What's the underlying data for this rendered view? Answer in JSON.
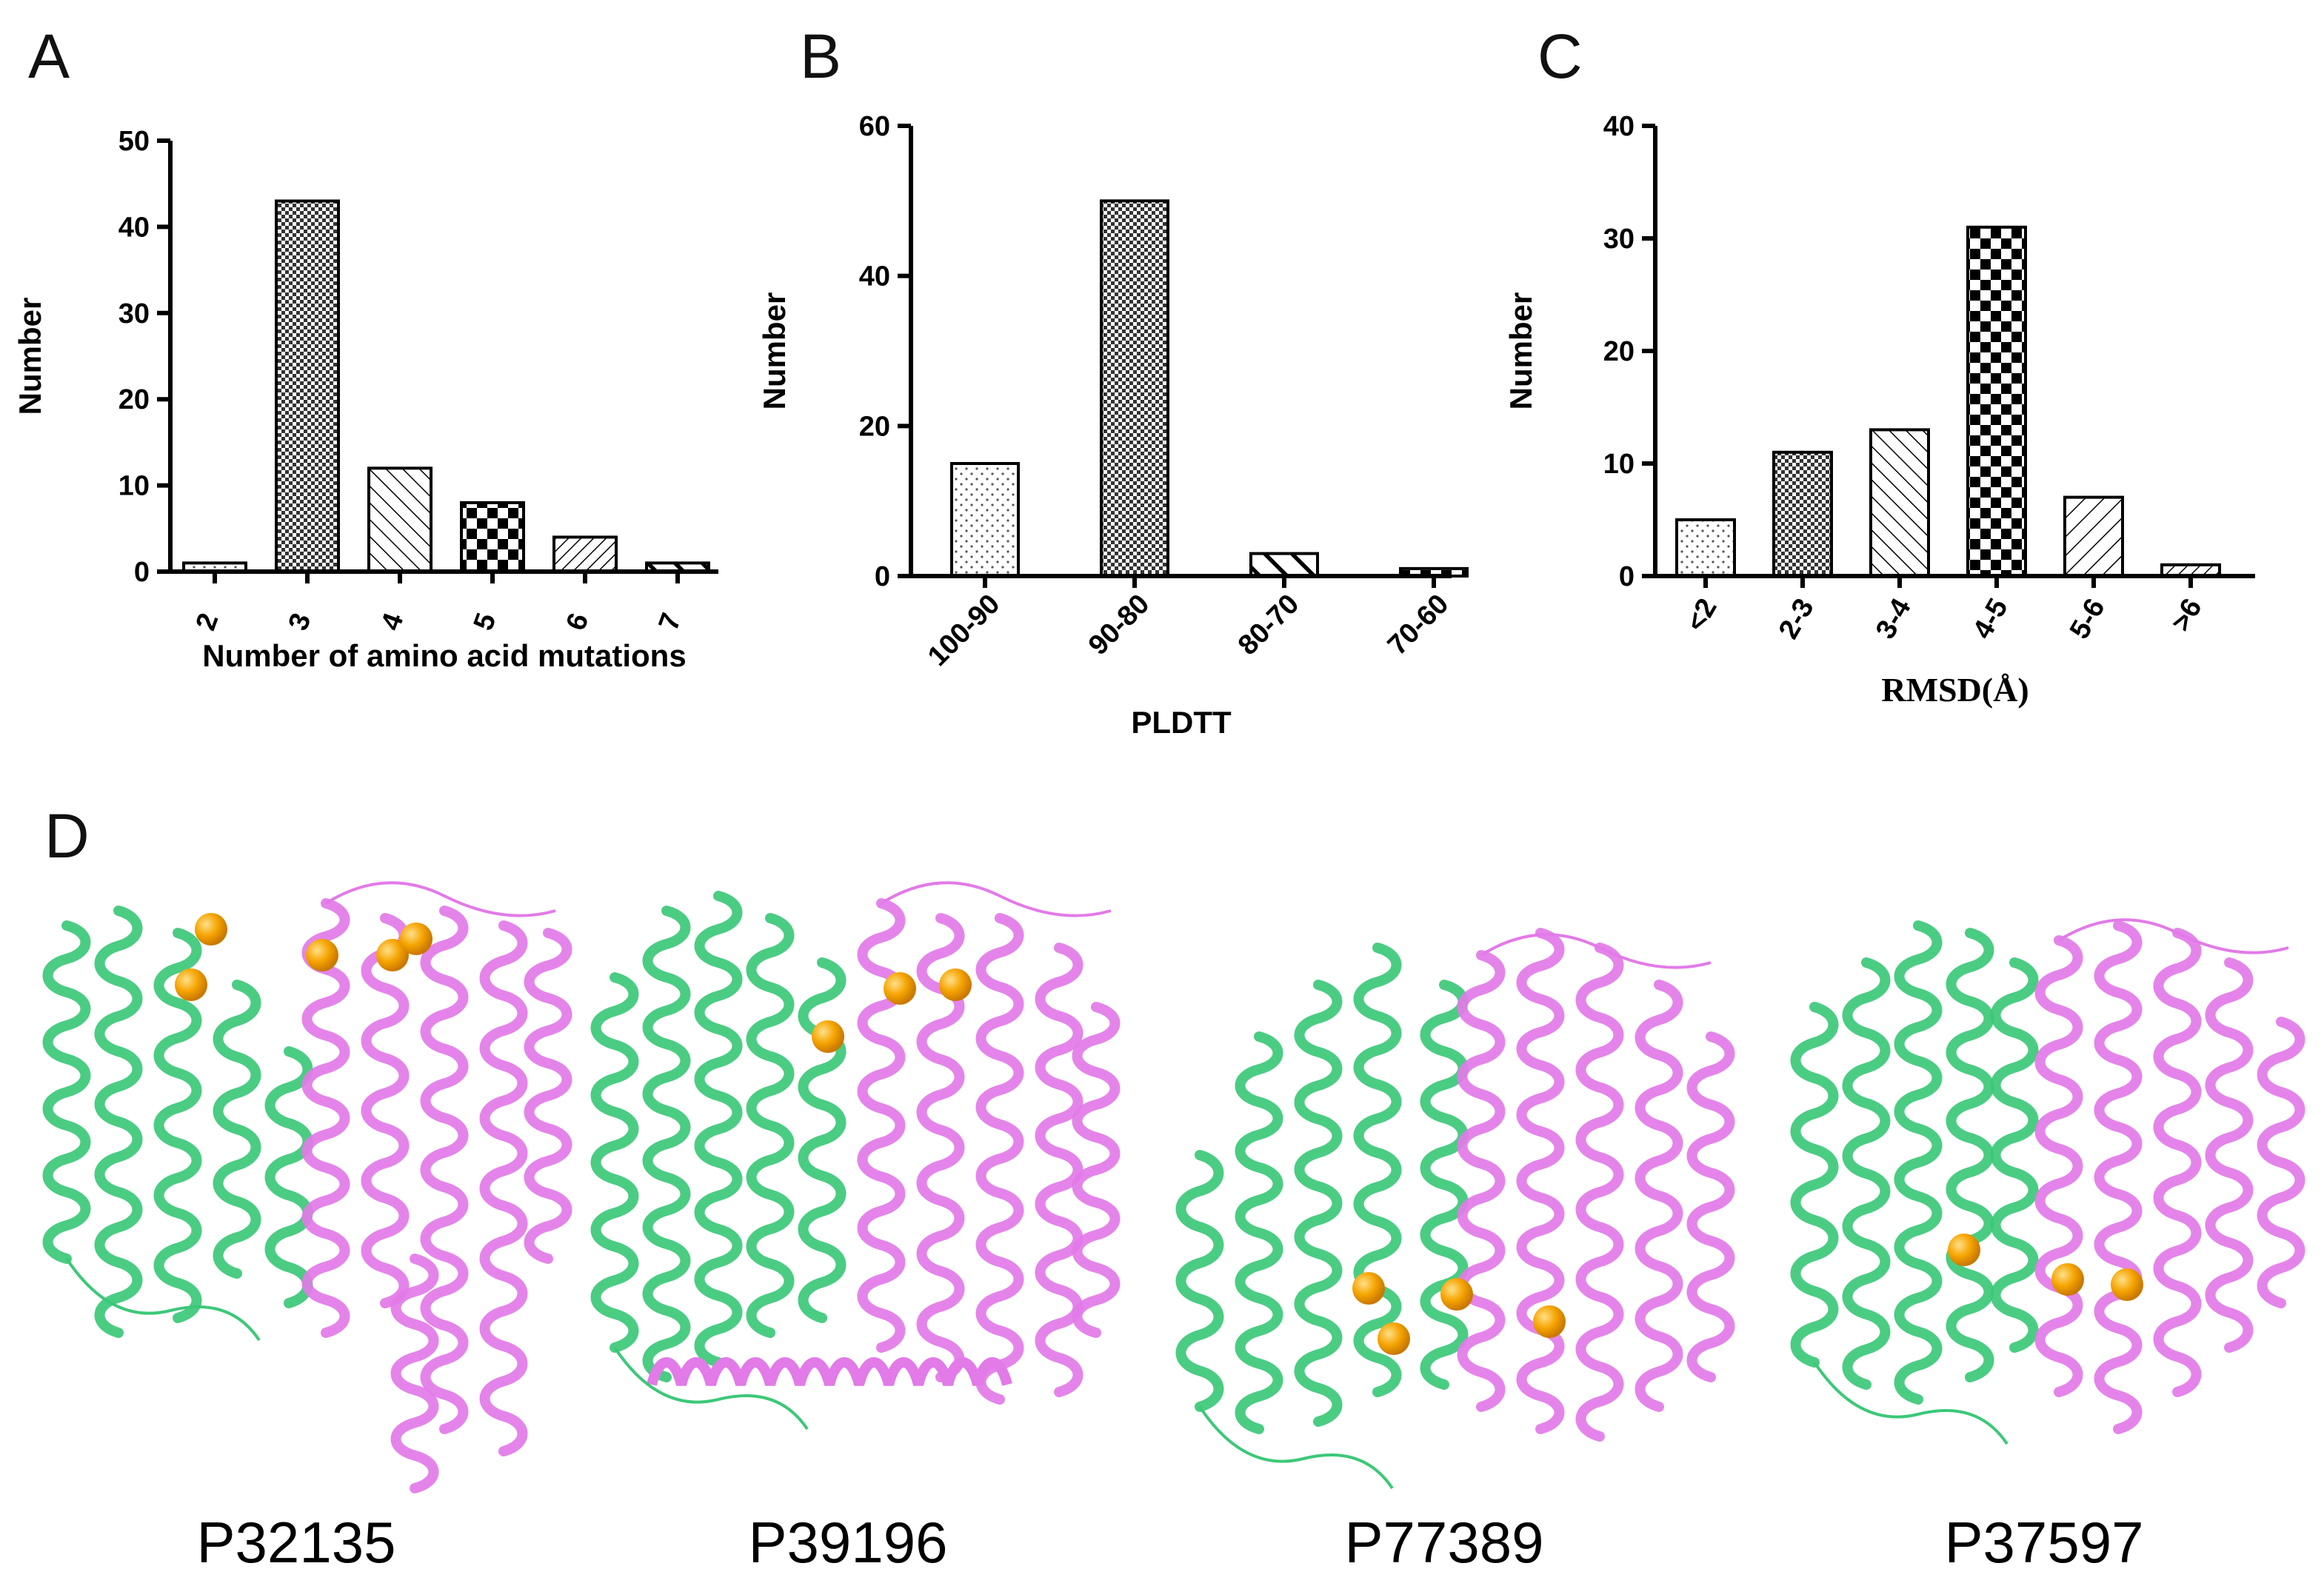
{
  "chart_data": [
    {
      "panel": "A",
      "type": "bar",
      "categories": [
        "2",
        "3",
        "4",
        "5",
        "6",
        "7"
      ],
      "values": [
        1,
        43,
        12,
        8,
        4,
        1
      ],
      "patterns": [
        "dots-light",
        "checker-fine",
        "diag-back",
        "checker-coarse",
        "diag-fwd-dense",
        "diag-thick"
      ],
      "xlabel": "Number of amino acid mutations",
      "ylabel": "Number",
      "ylim": [
        0,
        50
      ],
      "yticks": [
        "0",
        "10",
        "20",
        "30",
        "40",
        "50"
      ],
      "grid": false
    },
    {
      "panel": "B",
      "type": "bar",
      "categories": [
        "100-90",
        "90-80",
        "80-70",
        "70-60"
      ],
      "values": [
        15,
        50,
        3,
        1
      ],
      "patterns": [
        "dots-light",
        "checker-fine",
        "diag-thick",
        "checker-coarse"
      ],
      "xlabel": "PLDTT",
      "ylabel": "Number",
      "ylim": [
        0,
        60
      ],
      "yticks": [
        "0",
        "20",
        "40",
        "60"
      ],
      "grid": false
    },
    {
      "panel": "C",
      "type": "bar",
      "categories": [
        "<2",
        "2-3",
        "3-4",
        "4-5",
        "5-6",
        ">6"
      ],
      "values": [
        5,
        11,
        13,
        31,
        7,
        1
      ],
      "patterns": [
        "dots-light",
        "checker-fine",
        "diag-back",
        "checker-coarse",
        "diag-fwd",
        "diag-fwd-dense"
      ],
      "xlabel": "RMSD(Å)",
      "ylabel": "Number",
      "ylim": [
        0,
        40
      ],
      "yticks": [
        "0",
        "10",
        "20",
        "30",
        "40"
      ],
      "grid": false
    }
  ],
  "panel_d": {
    "letter": "D",
    "colors": {
      "chain_a": "#3cc878",
      "chain_b": "#e27ae8",
      "mutation_sites": "#f5a400"
    },
    "structures": [
      {
        "label": "P32135"
      },
      {
        "label": "P39196"
      },
      {
        "label": "P77389"
      },
      {
        "label": "P37597"
      }
    ]
  }
}
